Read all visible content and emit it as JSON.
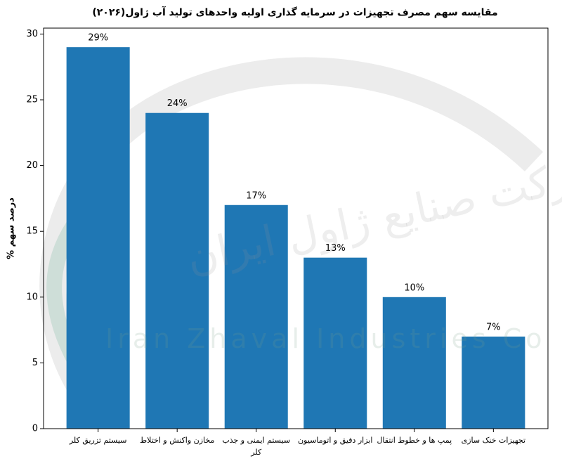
{
  "chart_data": {
    "type": "bar",
    "title": "مقایسه سهم مصرف تجهیزات در سرمایه گذاری اولیه واحدهای تولید آب ژاول(۲۰۲۶)",
    "y_label": "درصد سهم %",
    "categories": [
      "سیستم تزریق کلر",
      "مخازن واکنش و اختلاط",
      "سیستم ایمنی و جذب کلر",
      "ابزار دقیق و اتوماسیون",
      "پمپ ها و خطوط انتقال",
      "تجهیزات خنک سازی"
    ],
    "values": [
      29,
      24,
      17,
      13,
      10,
      7
    ],
    "value_labels": [
      "29%",
      "24%",
      "17%",
      "13%",
      "10%",
      "7%"
    ],
    "color": "#1f77b4",
    "ylim": [
      0,
      30.45
    ],
    "yticks": [
      0,
      5,
      10,
      15,
      20,
      25,
      30
    ]
  },
  "watermark": [
    "Iran Zhaval Industries Co",
    "شرکت صنایع ژاول ایران"
  ]
}
